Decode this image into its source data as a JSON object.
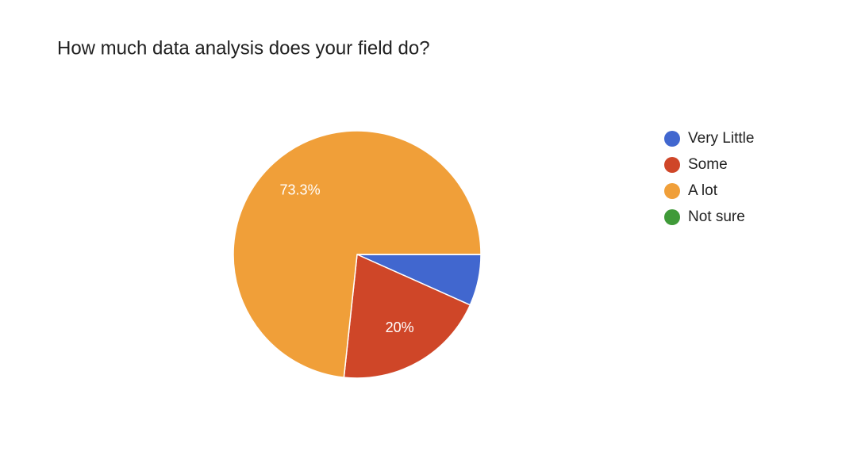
{
  "chart_data": {
    "type": "pie",
    "title": "How much data analysis does your field do?",
    "categories": [
      "Very Little",
      "Some",
      "A lot",
      "Not sure"
    ],
    "values": [
      6.7,
      20,
      73.3,
      0
    ],
    "value_labels": [
      null,
      "20%",
      "73.3%",
      null
    ],
    "colors": [
      "#4167cf",
      "#cf4628",
      "#f09f39",
      "#3f9a38"
    ],
    "legend": "right"
  }
}
